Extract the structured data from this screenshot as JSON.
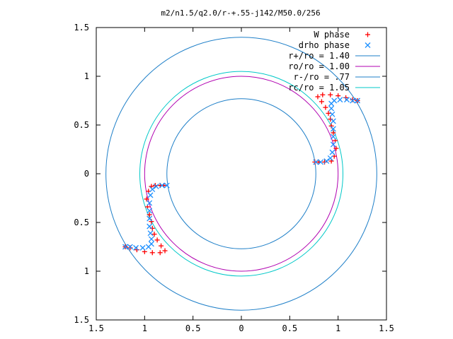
{
  "chart_data": {
    "type": "scatter",
    "title": "m2/n1.5/q2.0/r-+.55-j142/M50.0/256",
    "xlim": [
      -1.5,
      1.5
    ],
    "ylim": [
      -1.5,
      1.5
    ],
    "x_ticks": [
      -1.5,
      -1,
      -0.5,
      0,
      0.5,
      1,
      1.5
    ],
    "y_ticks": [
      -1.5,
      -1,
      -0.5,
      0,
      0.5,
      1,
      1.5
    ],
    "x_tick_labels": [
      "1.5",
      "1",
      "0.5",
      "0",
      "0.5",
      "1",
      "1.5"
    ],
    "y_tick_labels": [
      "1.5",
      "1",
      "0.5",
      "0",
      "0.5",
      "1",
      "1.5"
    ],
    "grid": false,
    "legend_position": "top-right",
    "series": [
      {
        "name": "W phase",
        "kind": "points",
        "marker": "plus",
        "color": "#ff0000",
        "points": [
          [
            -0.93,
            -0.13
          ],
          [
            -0.96,
            -0.18
          ],
          [
            -0.98,
            -0.26
          ],
          [
            -0.97,
            -0.34
          ],
          [
            -0.95,
            -0.42
          ],
          [
            -0.93,
            -0.49
          ],
          [
            -0.92,
            -0.56
          ],
          [
            -0.9,
            -0.62
          ],
          [
            -0.87,
            -0.68
          ],
          [
            -0.83,
            -0.74
          ],
          [
            -0.79,
            -0.79
          ],
          [
            -0.84,
            -0.81
          ],
          [
            -0.92,
            -0.81
          ],
          [
            -1.0,
            -0.8
          ],
          [
            -1.08,
            -0.78
          ],
          [
            -1.15,
            -0.76
          ],
          [
            -1.2,
            -0.75
          ],
          [
            -0.89,
            -0.12
          ],
          [
            -0.84,
            -0.12
          ],
          [
            -0.8,
            -0.12
          ],
          [
            0.76,
            0.12
          ],
          [
            0.8,
            0.12
          ],
          [
            0.86,
            0.12
          ],
          [
            0.93,
            0.13
          ],
          [
            0.96,
            0.18
          ],
          [
            0.98,
            0.26
          ],
          [
            0.97,
            0.34
          ],
          [
            0.95,
            0.42
          ],
          [
            0.93,
            0.49
          ],
          [
            0.92,
            0.56
          ],
          [
            0.9,
            0.62
          ],
          [
            0.87,
            0.68
          ],
          [
            0.83,
            0.74
          ],
          [
            0.79,
            0.79
          ],
          [
            0.84,
            0.81
          ],
          [
            0.92,
            0.81
          ],
          [
            1.0,
            0.8
          ],
          [
            1.08,
            0.78
          ],
          [
            1.15,
            0.76
          ],
          [
            1.2,
            0.75
          ]
        ]
      },
      {
        "name": "drho phase",
        "kind": "points",
        "marker": "cross",
        "color": "#1e90ff",
        "points": [
          [
            -0.77,
            -0.12
          ],
          [
            -0.82,
            -0.12
          ],
          [
            -0.88,
            -0.13
          ],
          [
            -0.92,
            -0.16
          ],
          [
            -0.94,
            -0.22
          ],
          [
            -0.95,
            -0.3
          ],
          [
            -0.95,
            -0.38
          ],
          [
            -0.95,
            -0.46
          ],
          [
            -0.95,
            -0.54
          ],
          [
            -0.94,
            -0.61
          ],
          [
            -0.93,
            -0.67
          ],
          [
            -0.93,
            -0.72
          ],
          [
            -0.96,
            -0.75
          ],
          [
            -1.02,
            -0.76
          ],
          [
            -1.09,
            -0.76
          ],
          [
            -1.15,
            -0.75
          ],
          [
            -1.2,
            -0.75
          ],
          [
            0.77,
            0.12
          ],
          [
            0.82,
            0.12
          ],
          [
            0.88,
            0.13
          ],
          [
            0.92,
            0.16
          ],
          [
            0.94,
            0.22
          ],
          [
            0.95,
            0.3
          ],
          [
            0.95,
            0.38
          ],
          [
            0.95,
            0.46
          ],
          [
            0.95,
            0.54
          ],
          [
            0.94,
            0.61
          ],
          [
            0.93,
            0.67
          ],
          [
            0.93,
            0.72
          ],
          [
            0.96,
            0.75
          ],
          [
            1.02,
            0.76
          ],
          [
            1.09,
            0.76
          ],
          [
            1.15,
            0.75
          ],
          [
            1.2,
            0.75
          ]
        ]
      },
      {
        "name": "r+/ro = 1.40",
        "kind": "circle",
        "radius": 1.4,
        "color": "#1e7fc8"
      },
      {
        "name": "ro/ro = 1.00",
        "kind": "circle",
        "radius": 1.0,
        "color": "#b000b0"
      },
      {
        "name": "r-/ro = .77",
        "kind": "circle",
        "radius": 0.77,
        "color": "#1e7fc8"
      },
      {
        "name": "rc/ro = 1.05",
        "kind": "circle",
        "radius": 1.05,
        "color": "#00c8c8"
      }
    ]
  }
}
